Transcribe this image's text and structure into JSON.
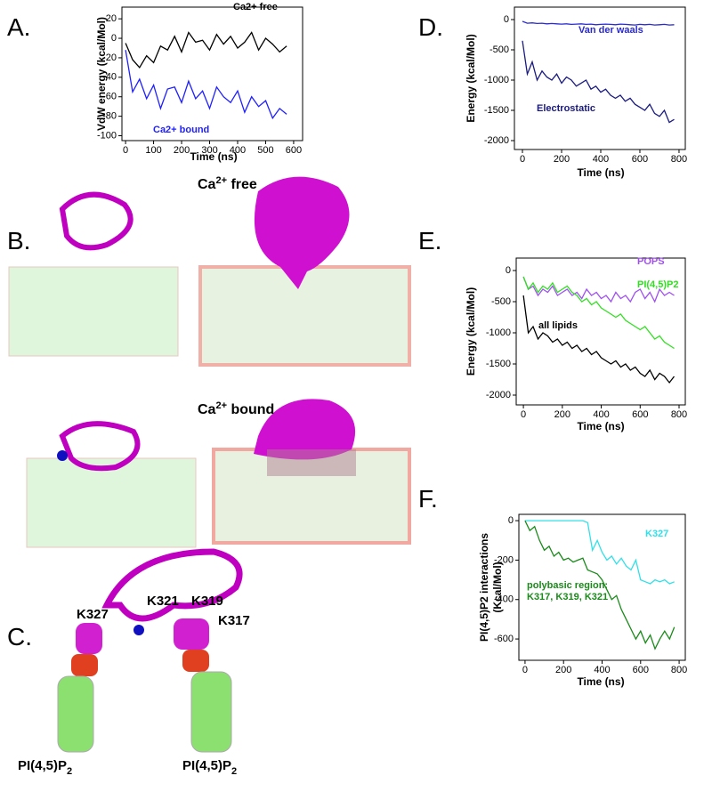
{
  "chart_data": [
    {
      "type": "line",
      "panel_label": "A.",
      "xlabel": "Time (ns)",
      "ylabel": "VdW energy (kcal/Mol)",
      "x": [
        0,
        25,
        50,
        75,
        100,
        125,
        150,
        175,
        200,
        225,
        250,
        275,
        300,
        325,
        350,
        375,
        400,
        425,
        450,
        475,
        500,
        525,
        550,
        575
      ],
      "series": [
        {
          "name": "Ca2+ free",
          "color": "#000000",
          "values": [
            -5,
            -22,
            -30,
            -18,
            -25,
            -8,
            -12,
            2,
            -14,
            6,
            -4,
            -2,
            -12,
            4,
            -6,
            2,
            -10,
            -4,
            6,
            -12,
            0,
            -6,
            -14,
            -8
          ]
        },
        {
          "name": "Ca2+ bound",
          "color": "#1f1fff",
          "values": [
            -12,
            -55,
            -42,
            -62,
            -48,
            -72,
            -52,
            -50,
            -66,
            -44,
            -62,
            -54,
            -72,
            -50,
            -60,
            -66,
            -54,
            -76,
            -60,
            -70,
            -64,
            -82,
            -72,
            -78
          ]
        }
      ],
      "xlim": [
        -13,
        632
      ],
      "ylim": [
        -105,
        32
      ],
      "xticks": [
        0,
        100,
        200,
        300,
        400,
        500,
        600
      ],
      "yticks": [
        -100,
        -80,
        -60,
        -40,
        -20,
        0,
        20
      ]
    },
    {
      "type": "line",
      "panel_label": "D.",
      "xlabel": "Time (ns)",
      "ylabel": "Energy (kcal/Mol)",
      "x": [
        0,
        25,
        50,
        75,
        100,
        125,
        150,
        175,
        200,
        225,
        250,
        275,
        300,
        325,
        350,
        375,
        400,
        425,
        450,
        475,
        500,
        525,
        550,
        575,
        600,
        625,
        650,
        675,
        700,
        725,
        750,
        775
      ],
      "series": [
        {
          "name": "Van der waals",
          "color": "#2a2ad0",
          "values": [
            -30,
            -60,
            -55,
            -65,
            -60,
            -70,
            -65,
            -70,
            -75,
            -70,
            -80,
            -75,
            -70,
            -80,
            -75,
            -85,
            -80,
            -75,
            -80,
            -85,
            -75,
            -80,
            -85,
            -90,
            -80,
            -85,
            -80,
            -90,
            -85,
            -80,
            -90,
            -85
          ]
        },
        {
          "name": "Electrostatic",
          "color": "#1a1a80",
          "values": [
            -350,
            -900,
            -700,
            -1000,
            -850,
            -950,
            -1000,
            -900,
            -1050,
            -950,
            -1000,
            -1100,
            -1050,
            -1000,
            -1150,
            -1100,
            -1200,
            -1150,
            -1250,
            -1300,
            -1250,
            -1350,
            -1300,
            -1400,
            -1450,
            -1500,
            -1400,
            -1550,
            -1600,
            -1500,
            -1700,
            -1650
          ]
        }
      ],
      "xlim": [
        -41,
        832
      ],
      "ylim": [
        -2147,
        206
      ],
      "xticks": [
        0,
        200,
        400,
        600,
        800
      ],
      "yticks": [
        -2000,
        -1500,
        -1000,
        -500,
        0
      ]
    },
    {
      "type": "line",
      "panel_label": "E.",
      "xlabel": "Time (ns)",
      "ylabel": "Energy (kcal/Mol)",
      "x": [
        0,
        25,
        50,
        75,
        100,
        125,
        150,
        175,
        200,
        225,
        250,
        275,
        300,
        325,
        350,
        375,
        400,
        425,
        450,
        475,
        500,
        525,
        550,
        575,
        600,
        625,
        650,
        675,
        700,
        725,
        750,
        775
      ],
      "series": [
        {
          "name": "POPS",
          "color": "#a050f0",
          "values": [
            -100,
            -300,
            -250,
            -400,
            -300,
            -350,
            -250,
            -400,
            -350,
            -300,
            -400,
            -350,
            -450,
            -300,
            -400,
            -350,
            -450,
            -400,
            -500,
            -350,
            -450,
            -400,
            -500,
            -350,
            -300,
            -450,
            -350,
            -500,
            -300,
            -400,
            -350,
            -400
          ]
        },
        {
          "name": "PI(4,5)P2",
          "color": "#30e020",
          "values": [
            -100,
            -300,
            -200,
            -350,
            -250,
            -300,
            -200,
            -350,
            -300,
            -250,
            -350,
            -400,
            -500,
            -450,
            -550,
            -500,
            -600,
            -650,
            -700,
            -750,
            -700,
            -800,
            -850,
            -900,
            -950,
            -900,
            -1000,
            -1100,
            -1050,
            -1150,
            -1200,
            -1250
          ]
        },
        {
          "name": "all lipids",
          "color": "#000000",
          "values": [
            -400,
            -1000,
            -900,
            -1100,
            -1000,
            -1050,
            -1150,
            -1100,
            -1200,
            -1150,
            -1250,
            -1200,
            -1300,
            -1250,
            -1350,
            -1300,
            -1400,
            -1450,
            -1500,
            -1450,
            -1550,
            -1500,
            -1600,
            -1550,
            -1650,
            -1700,
            -1600,
            -1750,
            -1650,
            -1700,
            -1800,
            -1700
          ]
        }
      ],
      "xlim": [
        -37,
        832
      ],
      "ylim": [
        -2157,
        200
      ],
      "xticks": [
        0,
        200,
        400,
        600,
        800
      ],
      "yticks": [
        -2000,
        -1500,
        -1000,
        -500,
        0
      ]
    },
    {
      "type": "line",
      "panel_label": "F.",
      "xlabel": "Time (ns)",
      "ylabel": [
        "PI(4,5)P2 interactions",
        "(Kcal/Mol)"
      ],
      "x": [
        0,
        25,
        50,
        75,
        100,
        125,
        150,
        175,
        200,
        225,
        250,
        275,
        300,
        325,
        350,
        375,
        400,
        425,
        450,
        475,
        500,
        525,
        550,
        575,
        600,
        625,
        650,
        675,
        700,
        725,
        750,
        775
      ],
      "series": [
        {
          "name": "K327",
          "color": "#30e0e8",
          "values": [
            0,
            0,
            0,
            0,
            0,
            0,
            0,
            0,
            0,
            0,
            0,
            0,
            0,
            -10,
            -150,
            -100,
            -160,
            -200,
            -180,
            -220,
            -190,
            -230,
            -250,
            -200,
            -300,
            -310,
            -320,
            -300,
            -310,
            -300,
            -320,
            -310
          ]
        },
        {
          "name": "polybasic region: K317, K319, K321",
          "color": "#1a8a1a",
          "values": [
            0,
            -50,
            -30,
            -100,
            -150,
            -130,
            -180,
            -160,
            -200,
            -190,
            -210,
            -200,
            -190,
            -250,
            -260,
            -270,
            -300,
            -350,
            -400,
            -380,
            -450,
            -500,
            -550,
            -600,
            -560,
            -620,
            -580,
            -650,
            -600,
            -560,
            -600,
            -540
          ]
        }
      ],
      "xlim": [
        -32,
        832
      ],
      "ylim": [
        -708,
        32
      ],
      "xticks": [
        0,
        200,
        400,
        600,
        800
      ],
      "yticks": [
        -600,
        -400,
        -200,
        0
      ]
    }
  ],
  "panel_B": {
    "label": "B.",
    "free": {
      "base": "Ca",
      "sup": "2+",
      "rest": " free"
    },
    "bound": {
      "base": "Ca",
      "sup": "2+",
      "rest": " bound"
    }
  },
  "panel_C": {
    "label": "C.",
    "residues": [
      "K327",
      "K321",
      "K319",
      "K317"
    ],
    "lipid": {
      "base": "PI(4,5)P",
      "sub": "2"
    }
  }
}
